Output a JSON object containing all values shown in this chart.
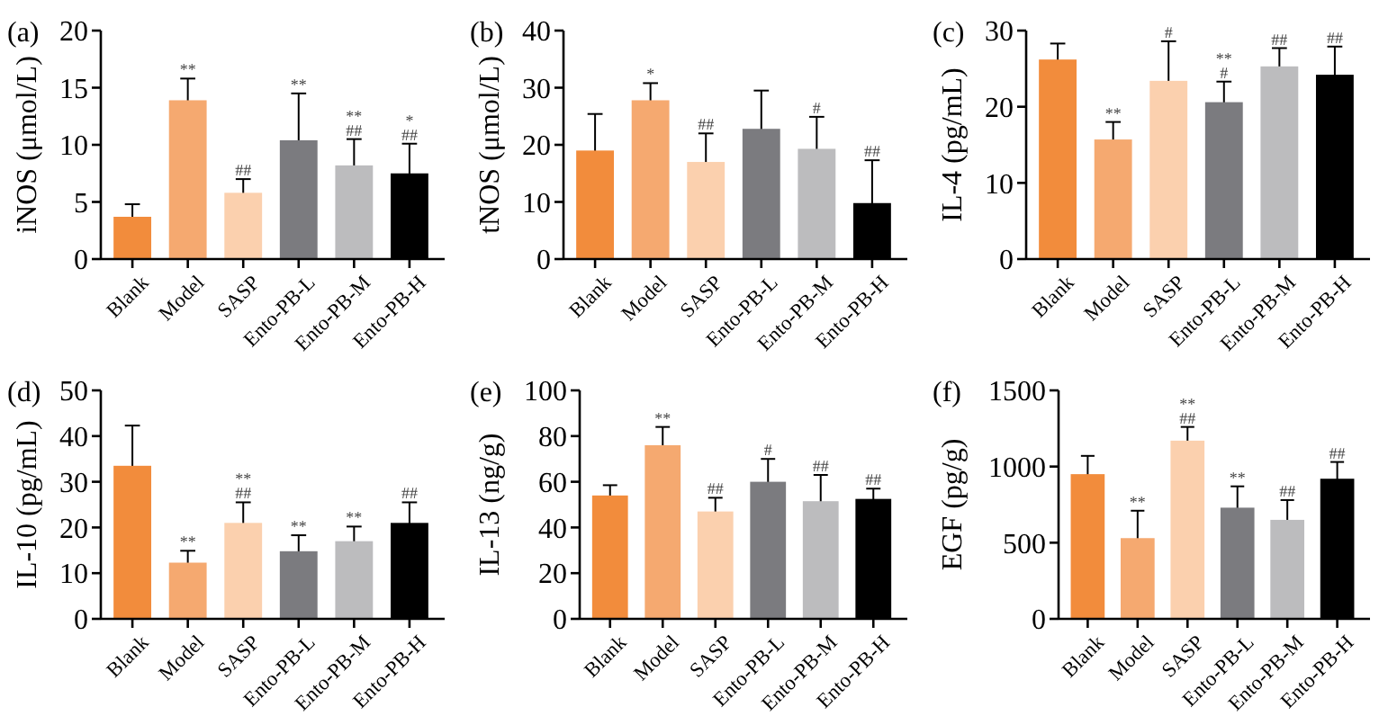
{
  "chart_data": [
    {
      "type": "bar",
      "title": "(a)",
      "ylabel": "iNOS (μmol/L)",
      "categories": [
        "Blank",
        "Model",
        "SASP",
        "Ento-PB-L",
        "Ento-PB-M",
        "Ento-PB-H"
      ],
      "values": [
        3.7,
        13.9,
        5.8,
        10.4,
        8.2,
        7.5
      ],
      "errors": [
        1.1,
        1.9,
        1.2,
        4.1,
        2.3,
        2.6
      ],
      "colors": [
        "#f28c3c",
        "#f5a970",
        "#fbd0ae",
        "#7b7b7f",
        "#bcbcbe",
        "#000000"
      ],
      "ylim": [
        0,
        20
      ],
      "yticks": [
        0,
        5,
        10,
        15,
        20
      ],
      "annotations": [
        {
          "text": "**",
          "x": "Model",
          "y": 15.8
        },
        {
          "text": "##",
          "x": "SASP",
          "y": 7.0
        },
        {
          "text": "**",
          "x": "Ento-PB-L",
          "y": 14.5
        },
        {
          "text": "##",
          "x": "Ento-PB-M",
          "y": 10.5
        },
        {
          "text": "**",
          "x": "Ento-PB-M",
          "y": 10.5
        },
        {
          "text": "##",
          "x": "Ento-PB-H",
          "y": 10.1
        },
        {
          "text": "*",
          "x": "Ento-PB-H",
          "y": 10.1
        }
      ]
    },
    {
      "type": "bar",
      "title": "(b)",
      "ylabel": "tNOS (μmol/L)",
      "categories": [
        "Blank",
        "Model",
        "SASP",
        "Ento-PB-L",
        "Ento-PB-M",
        "Ento-PB-H"
      ],
      "values": [
        19.0,
        27.8,
        17.0,
        22.8,
        19.3,
        9.8
      ],
      "errors": [
        6.4,
        3.0,
        5.0,
        6.7,
        5.6,
        7.5
      ],
      "colors": [
        "#f28c3c",
        "#f5a970",
        "#fbd0ae",
        "#7b7b7f",
        "#bcbcbe",
        "#000000"
      ],
      "ylim": [
        0,
        40
      ],
      "yticks": [
        0,
        10,
        20,
        30,
        40
      ],
      "annotations": [
        {
          "text": "*",
          "x": "Model",
          "y": 30.8
        },
        {
          "text": "##",
          "x": "SASP",
          "y": 22.0
        },
        {
          "text": "#",
          "x": "Ento-PB-M",
          "y": 24.9
        },
        {
          "text": "##",
          "x": "Ento-PB-H",
          "y": 17.3
        }
      ]
    },
    {
      "type": "bar",
      "title": "(c)",
      "ylabel": "IL-4 (pg/mL)",
      "categories": [
        "Blank",
        "Model",
        "SASP",
        "Ento-PB-L",
        "Ento-PB-M",
        "Ento-PB-H"
      ],
      "values": [
        26.2,
        15.7,
        23.4,
        20.6,
        25.3,
        24.2
      ],
      "errors": [
        2.1,
        2.3,
        5.2,
        2.7,
        2.4,
        3.7
      ],
      "colors": [
        "#f28c3c",
        "#f5a970",
        "#fbd0ae",
        "#7b7b7f",
        "#bcbcbe",
        "#000000"
      ],
      "ylim": [
        0,
        30
      ],
      "yticks": [
        0,
        10,
        20,
        30
      ],
      "annotations": [
        {
          "text": "**",
          "x": "Model",
          "y": 18.0
        },
        {
          "text": "#",
          "x": "SASP",
          "y": 28.6
        },
        {
          "text": "#",
          "x": "Ento-PB-L",
          "y": 23.3
        },
        {
          "text": "**",
          "x": "Ento-PB-L",
          "y": 23.3
        },
        {
          "text": "##",
          "x": "Ento-PB-M",
          "y": 27.7
        },
        {
          "text": "##",
          "x": "Ento-PB-H",
          "y": 27.9
        }
      ]
    },
    {
      "type": "bar",
      "title": "(d)",
      "ylabel": "IL-10 (pg/mL)",
      "categories": [
        "Blank",
        "Model",
        "SASP",
        "Ento-PB-L",
        "Ento-PB-M",
        "Ento-PB-H"
      ],
      "values": [
        33.5,
        12.3,
        21.0,
        14.8,
        17.0,
        21.0
      ],
      "errors": [
        8.8,
        2.6,
        4.5,
        3.5,
        3.2,
        4.5
      ],
      "colors": [
        "#f28c3c",
        "#f5a970",
        "#fbd0ae",
        "#7b7b7f",
        "#bcbcbe",
        "#000000"
      ],
      "ylim": [
        0,
        50
      ],
      "yticks": [
        0,
        10,
        20,
        30,
        40,
        50
      ],
      "annotations": [
        {
          "text": "**",
          "x": "Model",
          "y": 14.9
        },
        {
          "text": "##",
          "x": "SASP",
          "y": 25.5
        },
        {
          "text": "**",
          "x": "SASP",
          "y": 25.5
        },
        {
          "text": "**",
          "x": "Ento-PB-L",
          "y": 18.3
        },
        {
          "text": "**",
          "x": "Ento-PB-M",
          "y": 20.2
        },
        {
          "text": "##",
          "x": "Ento-PB-H",
          "y": 25.5
        }
      ]
    },
    {
      "type": "bar",
      "title": "(e)",
      "ylabel": "IL-13 (ng/g)",
      "categories": [
        "Blank",
        "Model",
        "SASP",
        "Ento-PB-L",
        "Ento-PB-M",
        "Ento-PB-H"
      ],
      "values": [
        54,
        76,
        47,
        60,
        51.5,
        52.5
      ],
      "errors": [
        4.5,
        8,
        6,
        10,
        11.5,
        4.5
      ],
      "colors": [
        "#f28c3c",
        "#f5a970",
        "#fbd0ae",
        "#7b7b7f",
        "#bcbcbe",
        "#000000"
      ],
      "ylim": [
        0,
        100
      ],
      "yticks": [
        0,
        20,
        40,
        60,
        80,
        100
      ],
      "annotations": [
        {
          "text": "**",
          "x": "Model",
          "y": 84
        },
        {
          "text": "##",
          "x": "SASP",
          "y": 53
        },
        {
          "text": "#",
          "x": "Ento-PB-L",
          "y": 70
        },
        {
          "text": "##",
          "x": "Ento-PB-M",
          "y": 63
        },
        {
          "text": "##",
          "x": "Ento-PB-H",
          "y": 57
        }
      ]
    },
    {
      "type": "bar",
      "title": "(f)",
      "ylabel": "EGF (pg/g)",
      "categories": [
        "Blank",
        "Model",
        "SASP",
        "Ento-PB-L",
        "Ento-PB-M",
        "Ento-PB-H"
      ],
      "values": [
        950,
        530,
        1170,
        730,
        650,
        920
      ],
      "errors": [
        120,
        180,
        90,
        140,
        130,
        110
      ],
      "colors": [
        "#f28c3c",
        "#f5a970",
        "#fbd0ae",
        "#7b7b7f",
        "#bcbcbe",
        "#000000"
      ],
      "ylim": [
        0,
        1500
      ],
      "yticks": [
        0,
        500,
        1000,
        1500
      ],
      "annotations": [
        {
          "text": "**",
          "x": "Model",
          "y": 710
        },
        {
          "text": "##",
          "x": "SASP",
          "y": 1260
        },
        {
          "text": "**",
          "x": "SASP",
          "y": 1260
        },
        {
          "text": "**",
          "x": "Ento-PB-L",
          "y": 870
        },
        {
          "text": "##",
          "x": "Ento-PB-M",
          "y": 780
        },
        {
          "text": "##",
          "x": "Ento-PB-H",
          "y": 1030
        }
      ]
    }
  ]
}
